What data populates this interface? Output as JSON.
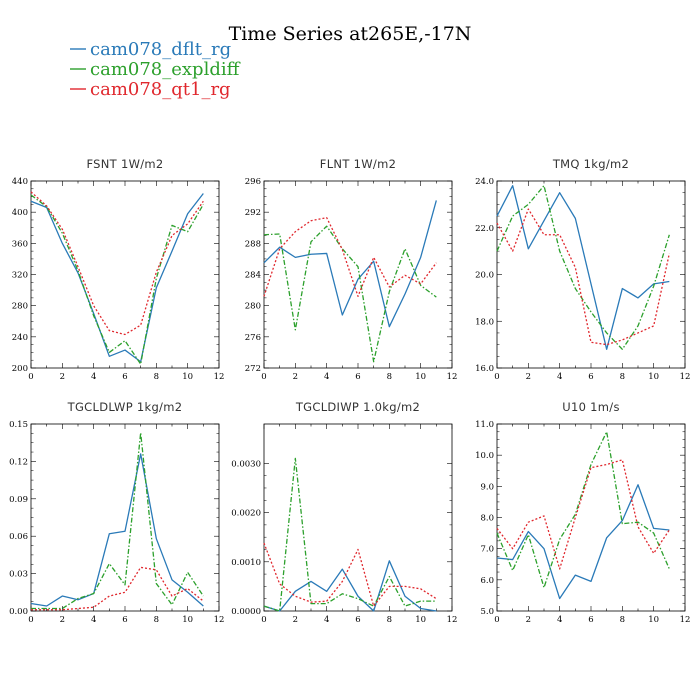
{
  "title": "Time Series at265E,-17N",
  "legend": [
    {
      "name": "cam078_dflt_rg",
      "color": "#2a7ab8"
    },
    {
      "name": "cam078_expldiff",
      "color": "#2ca02c"
    },
    {
      "name": "cam078_qt1_rg",
      "color": "#e0282e"
    }
  ],
  "chart_data": [
    {
      "type": "line",
      "title": "FSNT   1W/m2",
      "xlim": [
        0,
        12
      ],
      "ylim": [
        200,
        440
      ],
      "xticks": [
        0,
        2,
        4,
        6,
        8,
        10,
        12
      ],
      "yticks": [
        "200",
        "240",
        "280",
        "320",
        "360",
        "400",
        "440"
      ],
      "ytick_values": [
        200,
        240,
        280,
        320,
        360,
        400,
        440
      ],
      "x": [
        0,
        1,
        2,
        3,
        4,
        5,
        6,
        7,
        8,
        9,
        10,
        11
      ],
      "series": [
        {
          "name": "cam078_dflt_rg",
          "values": [
            414,
            406,
            360,
            322,
            270,
            215,
            223,
            208,
            303,
            350,
            398,
            424
          ]
        },
        {
          "name": "cam078_expldiff",
          "values": [
            422,
            407,
            373,
            325,
            267,
            220,
            235,
            205,
            315,
            383,
            375,
            410
          ]
        },
        {
          "name": "cam078_qt1_rg",
          "values": [
            426,
            408,
            378,
            330,
            280,
            248,
            243,
            255,
            323,
            370,
            385,
            414
          ]
        }
      ]
    },
    {
      "type": "line",
      "title": "FLNT   1W/m2",
      "xlim": [
        0,
        12
      ],
      "ylim": [
        272,
        296
      ],
      "xticks": [
        0,
        2,
        4,
        6,
        8,
        10,
        12
      ],
      "yticks": [
        "272",
        "276",
        "280",
        "284",
        "288",
        "292",
        "296"
      ],
      "ytick_values": [
        272,
        276,
        280,
        284,
        288,
        292,
        296
      ],
      "x": [
        0,
        1,
        2,
        3,
        4,
        5,
        6,
        7,
        8,
        9,
        10,
        11
      ],
      "series": [
        {
          "name": "cam078_dflt_rg",
          "values": [
            285.5,
            287.5,
            286.2,
            286.6,
            286.7,
            278.8,
            283.4,
            285.7,
            277.3,
            281.5,
            286.2,
            293.5
          ]
        },
        {
          "name": "cam078_expldiff",
          "values": [
            289.1,
            289.2,
            276.9,
            288.2,
            290.2,
            287.3,
            285,
            272.8,
            281.8,
            287.3,
            282.6,
            281.1
          ]
        },
        {
          "name": "cam078_qt1_rg",
          "values": [
            281.2,
            287.3,
            289.5,
            290.9,
            291.3,
            287.2,
            281.2,
            286.2,
            282.4,
            283.9,
            282.8,
            285.5
          ]
        }
      ]
    },
    {
      "type": "line",
      "title": "TMQ   1kg/m2",
      "xlim": [
        0,
        12
      ],
      "ylim": [
        16,
        24
      ],
      "xticks": [
        0,
        2,
        4,
        6,
        8,
        10,
        12
      ],
      "yticks": [
        "16.0",
        "18.0",
        "20.0",
        "22.0",
        "24.0"
      ],
      "ytick_values": [
        16,
        18,
        20,
        22,
        24
      ],
      "x": [
        0,
        1,
        2,
        3,
        4,
        5,
        6,
        7,
        8,
        9,
        10,
        11
      ],
      "series": [
        {
          "name": "cam078_dflt_rg",
          "values": [
            22.5,
            23.8,
            21.1,
            22.3,
            23.5,
            22.4,
            19.6,
            16.8,
            19.4,
            19.0,
            19.6,
            19.7
          ]
        },
        {
          "name": "cam078_expldiff",
          "values": [
            21.0,
            22.5,
            23.0,
            23.8,
            21.0,
            19.4,
            18.4,
            17.5,
            16.8,
            17.8,
            19.5,
            21.7
          ]
        },
        {
          "name": "cam078_qt1_rg",
          "values": [
            22.2,
            21.0,
            22.8,
            21.7,
            21.7,
            20.3,
            17.1,
            17.0,
            17.2,
            17.5,
            17.8,
            20.9
          ]
        }
      ]
    },
    {
      "type": "line",
      "title": "TGCLDLWP   1kg/m2",
      "xlim": [
        0,
        12
      ],
      "ylim": [
        0,
        0.15
      ],
      "xticks": [
        0,
        2,
        4,
        6,
        8,
        10,
        12
      ],
      "yticks": [
        "0.00",
        "0.03",
        "0.06",
        "0.09",
        "0.12",
        "0.15"
      ],
      "ytick_values": [
        0,
        0.03,
        0.06,
        0.09,
        0.12,
        0.15
      ],
      "x": [
        0,
        1,
        2,
        3,
        4,
        5,
        6,
        7,
        8,
        9,
        10,
        11
      ],
      "series": [
        {
          "name": "cam078_dflt_rg",
          "values": [
            0.006,
            0.004,
            0.012,
            0.009,
            0.014,
            0.062,
            0.064,
            0.126,
            0.058,
            0.025,
            0.015,
            0.004
          ]
        },
        {
          "name": "cam078_expldiff",
          "values": [
            0.002,
            0.002,
            0.002,
            0.01,
            0.014,
            0.038,
            0.021,
            0.143,
            0.022,
            0.005,
            0.031,
            0.012
          ]
        },
        {
          "name": "cam078_qt1_rg",
          "values": [
            0.001,
            0.001,
            0.001,
            0.002,
            0.003,
            0.012,
            0.015,
            0.035,
            0.033,
            0.012,
            0.018,
            0.008
          ]
        }
      ]
    },
    {
      "type": "line",
      "title": "TGCLDIWP   1.0kg/m2",
      "xlim": [
        0,
        12
      ],
      "ylim": [
        0,
        0.0038
      ],
      "xticks": [
        0,
        2,
        4,
        6,
        8,
        10,
        12
      ],
      "yticks": [
        "0.0000",
        "0.0010",
        "0.0020",
        "0.0030"
      ],
      "ytick_values": [
        0,
        0.001,
        0.002,
        0.003
      ],
      "x": [
        0,
        1,
        2,
        3,
        4,
        5,
        6,
        7,
        8,
        9,
        10,
        11
      ],
      "series": [
        {
          "name": "cam078_dflt_rg",
          "values": [
            0.0001,
            0.0,
            0.0004,
            0.0006,
            0.0004,
            0.00085,
            0.0003,
            0.0,
            0.00102,
            0.0003,
            5e-05,
            0.0
          ]
        },
        {
          "name": "cam078_expldiff",
          "values": [
            0.0001,
            0.0,
            0.0031,
            0.00015,
            0.00015,
            0.00035,
            0.00025,
            0.0001,
            0.0007,
            0.0001,
            0.0002,
            0.0002
          ]
        },
        {
          "name": "cam078_qt1_rg",
          "values": [
            0.00138,
            0.00055,
            0.0003,
            0.00018,
            0.0002,
            0.0006,
            0.00125,
            0.0001,
            0.0005,
            0.0005,
            0.00045,
            0.00025
          ]
        }
      ]
    },
    {
      "type": "line",
      "title": "U10   1m/s",
      "xlim": [
        0,
        12
      ],
      "ylim": [
        5,
        11
      ],
      "xticks": [
        0,
        2,
        4,
        6,
        8,
        10,
        12
      ],
      "yticks": [
        "5.0",
        "6.0",
        "7.0",
        "8.0",
        "9.0",
        "10.0",
        "11.0"
      ],
      "ytick_values": [
        5,
        6,
        7,
        8,
        9,
        10,
        11
      ],
      "x": [
        0,
        1,
        2,
        3,
        4,
        5,
        6,
        7,
        8,
        9,
        10,
        11
      ],
      "series": [
        {
          "name": "cam078_dflt_rg",
          "values": [
            6.7,
            6.65,
            7.55,
            7.0,
            5.4,
            6.15,
            5.95,
            7.35,
            7.9,
            9.05,
            7.65,
            7.6
          ]
        },
        {
          "name": "cam078_expldiff",
          "values": [
            7.5,
            6.3,
            7.45,
            5.75,
            7.3,
            8.1,
            9.7,
            10.75,
            7.8,
            7.85,
            7.5,
            6.35
          ]
        },
        {
          "name": "cam078_qt1_rg",
          "values": [
            7.65,
            7.0,
            7.85,
            8.05,
            6.35,
            8.0,
            9.6,
            9.7,
            9.85,
            7.7,
            6.85,
            7.6
          ]
        }
      ]
    }
  ]
}
